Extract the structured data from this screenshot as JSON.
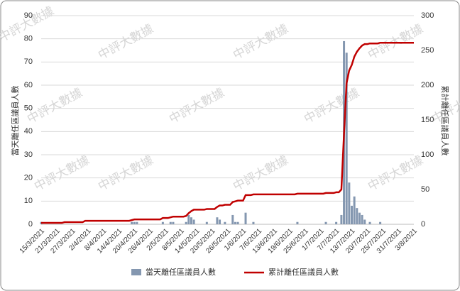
{
  "chart_data": {
    "type": "bar-line",
    "watermark": "中評大數據",
    "y_label": "當天離任區議員人數",
    "y2_label": "累計離任區議員人數",
    "categories": [
      "15/3/2021",
      null,
      null,
      null,
      null,
      null,
      "21/3/2021",
      null,
      null,
      null,
      null,
      null,
      "27/3/2021",
      null,
      null,
      null,
      null,
      null,
      "2/4/2021",
      null,
      null,
      null,
      null,
      null,
      "8/4/2021",
      null,
      null,
      null,
      null,
      null,
      "14/4/2021",
      null,
      null,
      null,
      null,
      null,
      "20/4/2021",
      null,
      null,
      null,
      null,
      null,
      "26/4/2021",
      null,
      null,
      null,
      null,
      null,
      "2/5/2021",
      null,
      null,
      null,
      null,
      null,
      "8/5/2021",
      null,
      null,
      null,
      null,
      null,
      "14/5/2021",
      null,
      null,
      null,
      null,
      null,
      "20/5/2021",
      null,
      null,
      null,
      null,
      null,
      "26/5/2021",
      null,
      null,
      null,
      null,
      null,
      "1/6/2021",
      null,
      null,
      null,
      null,
      null,
      "7/6/2021",
      null,
      null,
      null,
      null,
      null,
      "13/6/2021",
      null,
      null,
      null,
      null,
      null,
      "19/6/2021",
      null,
      null,
      null,
      null,
      null,
      "25/6/2021",
      null,
      null,
      null,
      null,
      null,
      "1/7/2021",
      null,
      null,
      null,
      null,
      null,
      "7/7/2021",
      null,
      null,
      null,
      null,
      null,
      "13/7/2021",
      null,
      null,
      null,
      null,
      null,
      "20/7/2021",
      null,
      null,
      null,
      null,
      null,
      "25/7/2021",
      null,
      null,
      null,
      null,
      null,
      "31/7/2021",
      null,
      null,
      null,
      null,
      null,
      "3/8/2021"
    ],
    "series": [
      {
        "name": "當天離任區議員人數",
        "kind": "bar",
        "color": "#8497b0",
        "values": [
          1,
          0,
          0,
          0,
          0,
          0,
          0,
          0,
          0,
          0,
          0,
          0,
          0,
          0,
          0,
          0,
          0,
          0,
          0,
          0,
          0,
          0,
          0,
          0,
          0,
          0,
          0,
          0,
          0,
          0,
          0,
          0,
          0,
          0,
          0,
          1,
          1,
          1,
          0,
          0,
          0,
          0,
          0,
          0,
          0,
          0,
          0,
          1,
          0,
          0,
          1,
          1,
          0,
          0,
          0,
          0,
          1,
          4,
          3,
          2,
          0,
          0,
          0,
          0,
          1,
          0,
          0,
          0,
          3,
          2,
          0,
          1,
          0,
          0,
          4,
          1,
          1,
          0,
          0,
          5,
          0,
          0,
          1,
          0,
          0,
          0,
          0,
          0,
          0,
          0,
          0,
          0,
          0,
          0,
          0,
          0,
          0,
          0,
          0,
          1,
          0,
          0,
          0,
          0,
          0,
          0,
          0,
          0,
          0,
          0,
          1,
          0,
          0,
          0,
          1,
          0,
          4,
          79,
          74,
          18,
          8,
          12,
          7,
          5,
          4,
          2,
          0,
          1,
          0,
          0,
          0,
          1,
          0,
          0,
          0,
          0,
          0,
          0,
          0,
          0,
          0,
          0,
          0,
          0,
          0
        ]
      },
      {
        "name": "累計離任區議員人數",
        "kind": "line",
        "axis": "y2",
        "color": "#c00000",
        "values": [
          2,
          2,
          2,
          2,
          2,
          2,
          2,
          2,
          2,
          3,
          3,
          3,
          3,
          3,
          3,
          3,
          3,
          5,
          5,
          5,
          5,
          5,
          5,
          5,
          5,
          5,
          5,
          5,
          5,
          5,
          5,
          5,
          5,
          5,
          5,
          6,
          7,
          7,
          7,
          7,
          7,
          7,
          7,
          7,
          7,
          7,
          7,
          9,
          9,
          9,
          10,
          11,
          11,
          11,
          11,
          11,
          12,
          16,
          19,
          21,
          21,
          21,
          21,
          21,
          22,
          22,
          22,
          22,
          25,
          27,
          27,
          28,
          28,
          28,
          32,
          33,
          34,
          34,
          34,
          42,
          42,
          42,
          43,
          43,
          43,
          43,
          43,
          43,
          43,
          43,
          43,
          43,
          43,
          43,
          43,
          43,
          43,
          43,
          43,
          44,
          44,
          44,
          44,
          44,
          44,
          44,
          44,
          44,
          44,
          44,
          45,
          45,
          45,
          45,
          46,
          46,
          50,
          129,
          203,
          221,
          229,
          241,
          248,
          253,
          257,
          259,
          259,
          260,
          260,
          260,
          260,
          261,
          261,
          261,
          261,
          261,
          261,
          261,
          261,
          261,
          261,
          261,
          261,
          261,
          261
        ]
      }
    ],
    "ylim": [
      0,
      90
    ],
    "yticks": [
      0,
      10,
      20,
      30,
      40,
      50,
      60,
      70,
      80,
      90
    ],
    "y2lim": [
      0,
      300
    ],
    "y2ticks": [
      0,
      50,
      100,
      150,
      200,
      250,
      300
    ],
    "grid": true,
    "legend": "bottom"
  }
}
